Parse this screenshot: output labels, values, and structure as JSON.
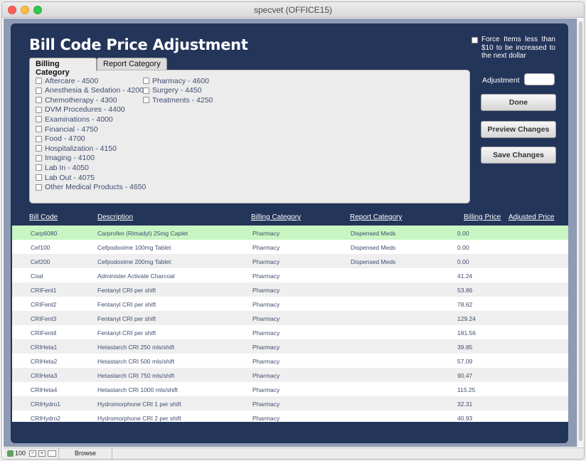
{
  "window": {
    "title": "specvet (OFFICE15)"
  },
  "header": {
    "title": "Bill Code Price Adjustment"
  },
  "tabs": {
    "billing": "Billing Category",
    "report": "Report Category"
  },
  "categories_col1": [
    "Aftercare - 4500",
    "Anesthesia & Sedation - 4200",
    "Chemotherapy - 4300",
    "DVM Procedures - 4400",
    "Examinations - 4000",
    "Financial - 4750",
    "Food - 4700",
    "Hospitalization - 4150",
    "Imaging - 4100",
    "Lab In - 4050",
    "Lab Out - 4075",
    "Other Medical Products - 4650"
  ],
  "categories_col2": [
    "Pharmacy - 4600",
    "Surgery - 4450",
    "Treatments - 4250"
  ],
  "force": {
    "label": "Force Items less than $10 to be increased to the next dollar"
  },
  "adjustment": {
    "label": "Adjustment",
    "value": ""
  },
  "buttons": {
    "done": "Done",
    "preview": "Preview Changes",
    "save": "Save Changes"
  },
  "columns": {
    "bill_code": "Bill Code",
    "description": "Description",
    "billing_category": "Billing Category",
    "report_category": "Report Category",
    "billing_price": "Billing Price",
    "adjusted_price": "Adjusted Price"
  },
  "rows": [
    {
      "code": "Carp6080",
      "desc": "Carprofen (Rimadyl) 25mg Caplet",
      "billing": "Pharmacy",
      "report": "Dispensed Meds",
      "price": "0.00",
      "adjusted": ""
    },
    {
      "code": "Cef100",
      "desc": "Cefpodoxime 100mg Tablet",
      "billing": "Pharmacy",
      "report": "Dispensed Meds",
      "price": "0.00",
      "adjusted": ""
    },
    {
      "code": "Cef200",
      "desc": "Cefpodoxime 200mg Tablet",
      "billing": "Pharmacy",
      "report": "Dispensed Meds",
      "price": "0.00",
      "adjusted": ""
    },
    {
      "code": "Coal",
      "desc": "Administer Activate Charcoal",
      "billing": "Pharmacy",
      "report": "",
      "price": "41.24",
      "adjusted": ""
    },
    {
      "code": "CRIFent1",
      "desc": "Fentanyl CRI per shift",
      "billing": "Pharmacy",
      "report": "",
      "price": "53.86",
      "adjusted": ""
    },
    {
      "code": "CRIFent2",
      "desc": "Fentanyl CRI per shift",
      "billing": "Pharmacy",
      "report": "",
      "price": "78.62",
      "adjusted": ""
    },
    {
      "code": "CRIFent3",
      "desc": "Fentanyl CRI per shift",
      "billing": "Pharmacy",
      "report": "",
      "price": "129.24",
      "adjusted": ""
    },
    {
      "code": "CRIFent4",
      "desc": "Fentanyl CRI per shift",
      "billing": "Pharmacy",
      "report": "",
      "price": "181.56",
      "adjusted": ""
    },
    {
      "code": "CRIHeta1",
      "desc": "Hetastarch CRI 250 mls/shift",
      "billing": "Pharmacy",
      "report": "",
      "price": "39.85",
      "adjusted": ""
    },
    {
      "code": "CRIHeta2",
      "desc": "Hetastarch CRI  500 mls/shift",
      "billing": "Pharmacy",
      "report": "",
      "price": "57.09",
      "adjusted": ""
    },
    {
      "code": "CRIHeta3",
      "desc": "Hetastarch  CRI 750 mls/shift",
      "billing": "Pharmacy",
      "report": "",
      "price": "90.47",
      "adjusted": ""
    },
    {
      "code": "CRIHeta4",
      "desc": "Hetastarch CRI 1000 mls/shift",
      "billing": "Pharmacy",
      "report": "",
      "price": "115.25",
      "adjusted": ""
    },
    {
      "code": "CRIHydro1",
      "desc": "Hydromorphone CRI  1 per shift",
      "billing": "Pharmacy",
      "report": "",
      "price": "32.31",
      "adjusted": ""
    },
    {
      "code": "CRIHydro2",
      "desc": "Hydromorphone CRI  2 per shift",
      "billing": "Pharmacy",
      "report": "",
      "price": "40.93",
      "adjusted": ""
    }
  ],
  "status": {
    "zoom": "100",
    "minus": "−",
    "plus": "+",
    "mode": "Browse"
  }
}
